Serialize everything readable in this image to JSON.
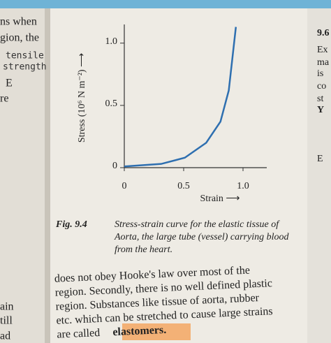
{
  "chart_data": {
    "type": "line",
    "x_label": "Strain ⟶",
    "y_label": "Stress (10⁶ N m⁻²) ⟶",
    "x": [
      0,
      0.31,
      0.51,
      0.69,
      0.81,
      0.88,
      0.94
    ],
    "values": [
      0.01,
      0.03,
      0.08,
      0.2,
      0.37,
      0.62,
      1.13
    ],
    "color": "#2e6fb0",
    "xlim": [
      0,
      1.2
    ],
    "ylim": [
      0,
      1.15
    ],
    "xticks": [
      0,
      0.5,
      {
        "value": 1,
        "label": "1.0"
      }
    ],
    "yticks": [
      0,
      0.5,
      {
        "value": 1,
        "label": "1.0"
      }
    ]
  },
  "caption": {
    "label": "Fig. 9.4",
    "lines": [
      "Stress-strain curve for the elastic tissue of",
      "Aorta, the large tube (vessel) carrying blood",
      "from the heart."
    ]
  },
  "body": {
    "lines": [
      "does not obey Hooke's law over most of the",
      "region. Secondly, there is no well defined plastic",
      "region. Substances like tissue of aorta, rubber",
      "etc. which can be stretched to cause large strains",
      "are called"
    ],
    "highlight": "elastomers."
  },
  "left_margin": [
    "ns when",
    "gion, the",
    "tensile",
    "strength",
    "E",
    "re",
    "ain",
    "till",
    "ad"
  ],
  "right_margin": [
    "9.6",
    "Ex",
    "ma",
    "is",
    "co",
    "st",
    "Y",
    "E"
  ]
}
